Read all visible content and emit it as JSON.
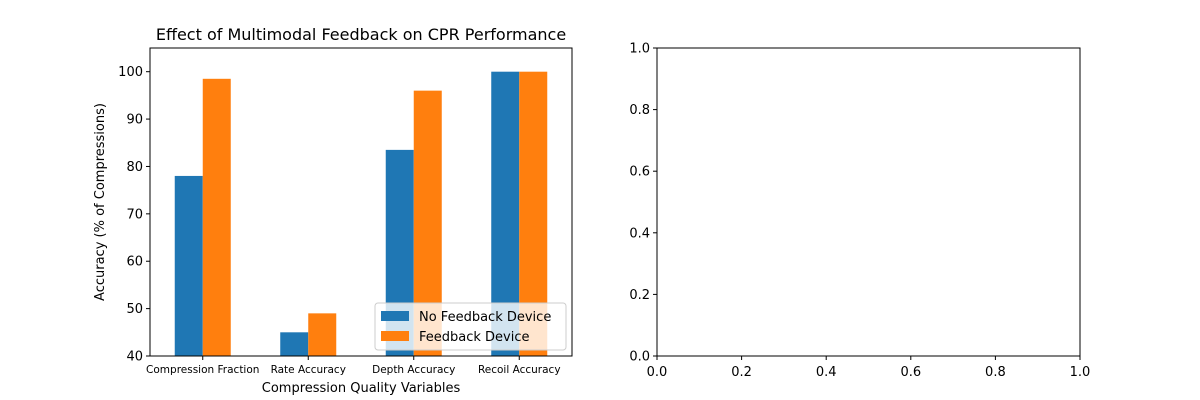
{
  "chart_data": [
    {
      "type": "bar",
      "title": "Effect of Multimodal Feedback on CPR Performance",
      "xlabel": "Compression Quality Variables",
      "ylabel": "Accuracy (% of Compressions)",
      "categories": [
        "Compression Fraction",
        "Rate Accuracy",
        "Depth Accuracy",
        "Recoil Accuracy"
      ],
      "series": [
        {
          "name": "No Feedback Device",
          "color": "#1f77b4",
          "values": [
            78,
            45,
            83.5,
            100
          ]
        },
        {
          "name": "Feedback Device",
          "color": "#ff7f0e",
          "values": [
            98.5,
            49,
            96,
            100
          ]
        }
      ],
      "ylim": [
        40,
        105
      ],
      "yticks": [
        40,
        50,
        60,
        70,
        80,
        90,
        100
      ],
      "yticks_text": [
        "40",
        "50",
        "60",
        "70",
        "80",
        "90",
        "100"
      ],
      "legend_position": "lower-right",
      "grid": false
    },
    {
      "type": "empty",
      "xlim": [
        0,
        1
      ],
      "ylim": [
        0,
        1
      ],
      "xticks_text": [
        "0.0",
        "0.2",
        "0.4",
        "0.6",
        "0.8",
        "1.0"
      ],
      "yticks_text": [
        "0.0",
        "0.2",
        "0.4",
        "0.6",
        "0.8",
        "1.0"
      ],
      "grid": false
    }
  ]
}
